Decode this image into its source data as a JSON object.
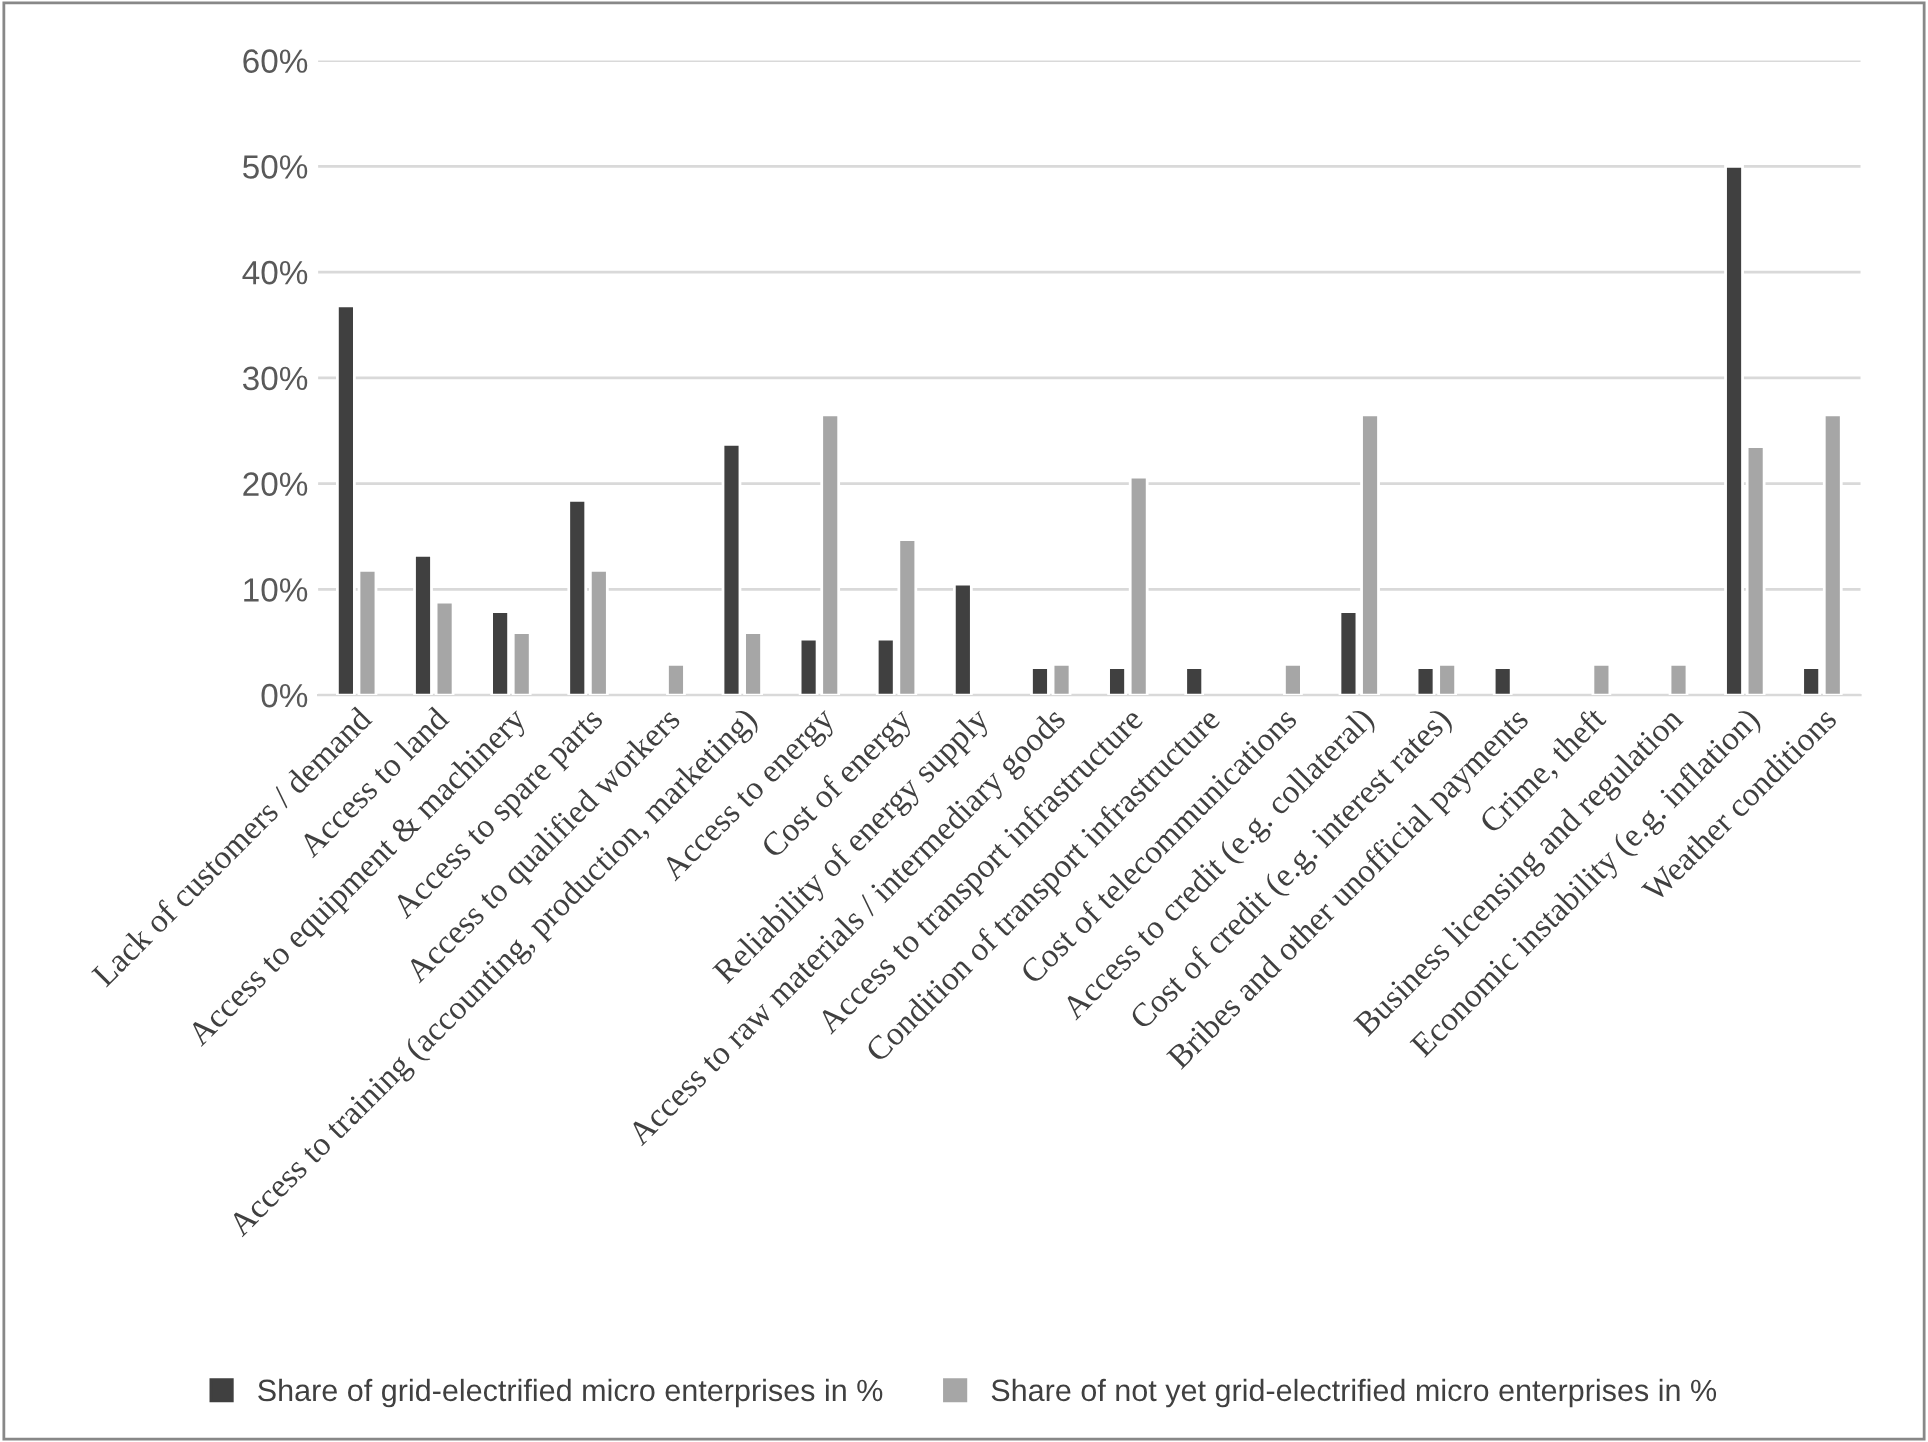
{
  "chart_data": {
    "type": "bar",
    "categories": [
      "Lack of customers / demand",
      "Access to land",
      "Access to equipment & machinery",
      "Access to spare parts",
      "Access to qualified workers",
      "Access to training (accounting, production, marketing)",
      "Access to energy",
      "Cost of energy",
      "Reliability of energy supply",
      "Access to raw materials / intermediary goods",
      "Access to transport infrastructure",
      "Condition of transport infrastructure",
      "Cost of telecommunications",
      "Access to credit (e.g. collateral)",
      "Cost of credit (e.g. interest rates)",
      "Bribes and other unofficial payments",
      "Crime, theft",
      "Business licensing and regulation",
      "Economic instability (e.g. inflation)",
      "Weather conditions"
    ],
    "series": [
      {
        "name": "Share of grid-electrified micro enterprises in %",
        "color": "#404040",
        "values": [
          36.8,
          13.2,
          7.9,
          18.4,
          null,
          23.7,
          5.3,
          5.3,
          10.5,
          2.6,
          2.6,
          2.6,
          null,
          7.9,
          2.6,
          2.6,
          null,
          null,
          50,
          2.6
        ]
      },
      {
        "name": "Share of not yet grid-electrified micro enterprises in %",
        "color": "#a6a6a6",
        "values": [
          11.8,
          8.8,
          5.9,
          11.8,
          2.9,
          5.9,
          26.5,
          14.7,
          null,
          2.9,
          20.6,
          null,
          2.9,
          26.5,
          2.9,
          null,
          2.9,
          2.9,
          23.5,
          26.5
        ]
      }
    ],
    "ylim": [
      0,
      60
    ],
    "yticks": [
      {
        "value": 0,
        "label": "0%"
      },
      {
        "value": 10,
        "label": "10%"
      },
      {
        "value": 20,
        "label": "20%"
      },
      {
        "value": 30,
        "label": "30%"
      },
      {
        "value": 40,
        "label": "40%"
      },
      {
        "value": 50,
        "label": "50%"
      },
      {
        "value": 60,
        "label": "60%"
      }
    ],
    "grid": "y",
    "legend": "bottom"
  }
}
